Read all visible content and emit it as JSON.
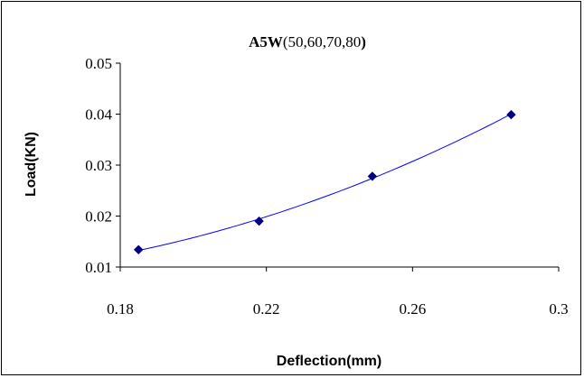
{
  "chart_data": {
    "type": "scatter",
    "title_bold": "A5W",
    "title_rest": "(50,60,70,80",
    "title_close": ")",
    "xlabel": "Deflection(mm)",
    "ylabel": "Load(KN)",
    "xlim": [
      0.18,
      0.3
    ],
    "ylim": [
      0.01,
      0.05
    ],
    "x_ticks": [
      "0.18",
      "0.22",
      "0.26",
      "0.3"
    ],
    "y_ticks": [
      "0.01",
      "0.02",
      "0.03",
      "0.04",
      "0.05"
    ],
    "series": [
      {
        "x": [
          0.185,
          0.218,
          0.249,
          0.287
        ],
        "y": [
          0.0134,
          0.019,
          0.0278,
          0.0399
        ],
        "marker": "diamond",
        "marker_color": "#000080",
        "trendline_color": "#0000ff"
      }
    ],
    "grid": false,
    "legend": "none"
  }
}
